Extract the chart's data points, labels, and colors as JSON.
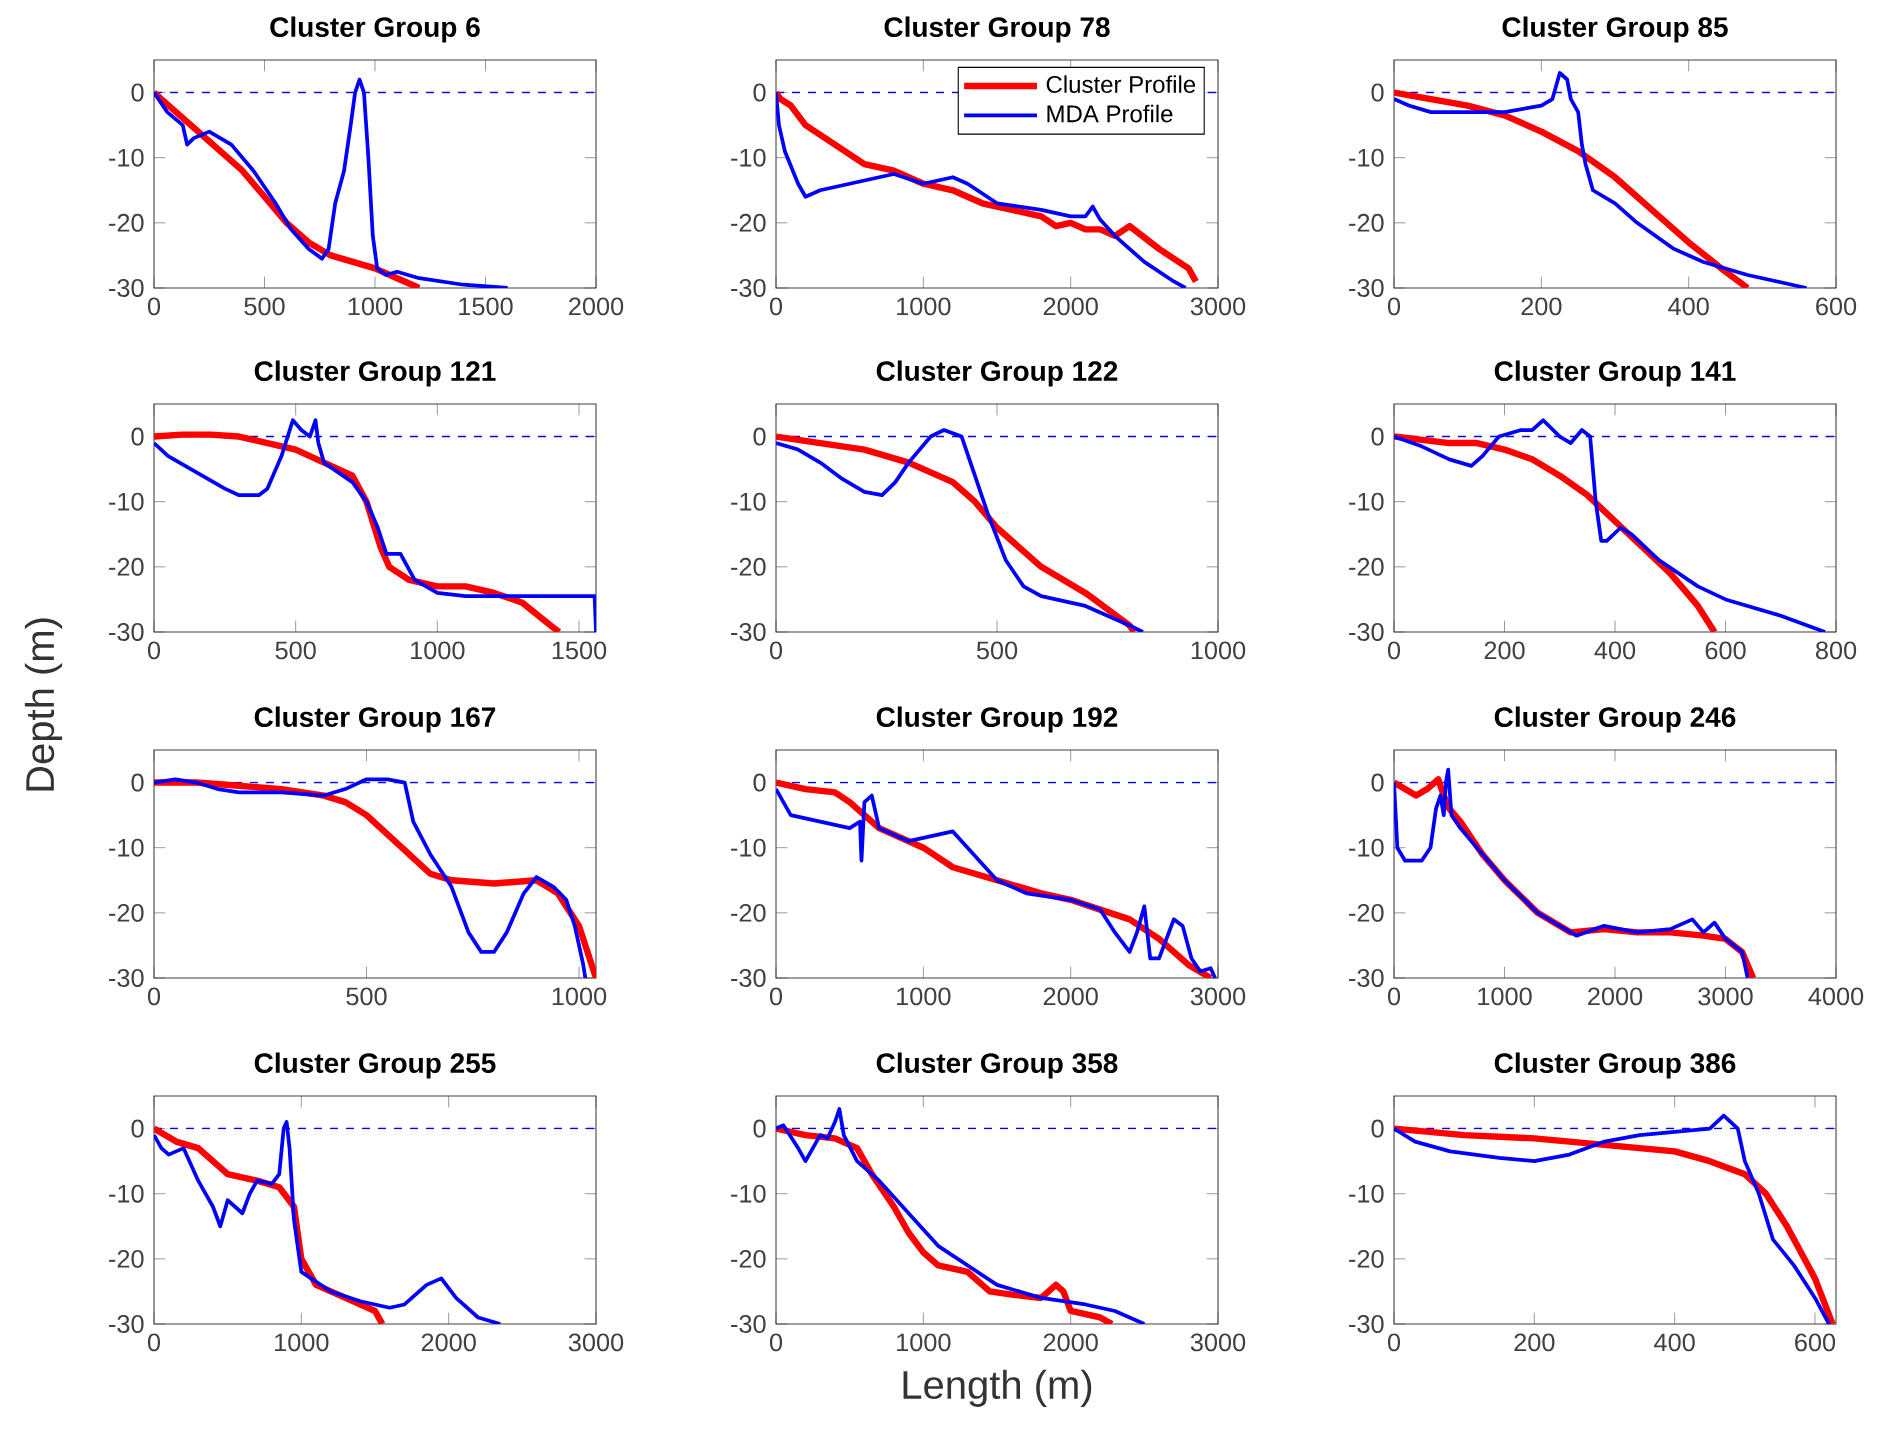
{
  "chart_data": [
    {
      "type": "line",
      "title": "Cluster Group 6",
      "xlim": [
        0,
        2000
      ],
      "ylim": [
        -30,
        5
      ],
      "xticks": [
        0,
        500,
        1000,
        1500,
        2000
      ],
      "yticks": [
        -30,
        -20,
        -10,
        0
      ],
      "ref_lines": [
        {
          "axis": "y",
          "value": 0,
          "color": "#0000ff",
          "line_style": "dashed"
        }
      ],
      "series": [
        {
          "color": "#ff0000",
          "x": [
            0,
            100,
            200,
            300,
            400,
            500,
            600,
            700,
            800,
            900,
            1000,
            1100,
            1200
          ],
          "values": [
            0,
            -3,
            -6,
            -9,
            -12,
            -16,
            -20,
            -23,
            -25,
            -26,
            -27,
            -28.5,
            -30
          ]
        },
        {
          "color": "#0000ff",
          "x": [
            0,
            60,
            130,
            150,
            180,
            250,
            350,
            450,
            550,
            620,
            700,
            760,
            790,
            820,
            860,
            890,
            910,
            930,
            950,
            970,
            990,
            1010,
            1050,
            1100,
            1200,
            1400,
            1600
          ],
          "values": [
            0,
            -3,
            -5,
            -8,
            -7,
            -6,
            -8,
            -12,
            -17,
            -21,
            -24,
            -25.5,
            -24,
            -17,
            -12,
            -5,
            0,
            2,
            0,
            -10,
            -22,
            -27,
            -28,
            -27.5,
            -28.5,
            -29.5,
            -30
          ]
        }
      ]
    },
    {
      "type": "line",
      "title": "Cluster Group 78",
      "xlim": [
        0,
        3000
      ],
      "ylim": [
        -30,
        5
      ],
      "xticks": [
        0,
        1000,
        2000,
        3000
      ],
      "yticks": [
        -30,
        -20,
        -10,
        0
      ],
      "legend": "top right",
      "ref_lines": [
        {
          "axis": "y",
          "value": 0,
          "color": "#0000ff",
          "line_style": "dashed"
        }
      ],
      "series": [
        {
          "name": "Cluster Profile",
          "color": "#ff0000",
          "x": [
            0,
            30,
            100,
            200,
            400,
            600,
            800,
            1000,
            1200,
            1400,
            1600,
            1800,
            1900,
            2000,
            2100,
            2200,
            2300,
            2400,
            2600,
            2800,
            2850
          ],
          "values": [
            0,
            -1,
            -2,
            -5,
            -8,
            -11,
            -12,
            -14,
            -15,
            -17,
            -18,
            -19,
            -20.5,
            -20,
            -21,
            -21,
            -22,
            -20.5,
            -24,
            -27,
            -29
          ]
        },
        {
          "name": "MDA Profile",
          "color": "#0000ff",
          "x": [
            0,
            20,
            60,
            150,
            200,
            300,
            500,
            700,
            800,
            1000,
            1200,
            1300,
            1500,
            1800,
            2000,
            2100,
            2150,
            2200,
            2300,
            2500,
            2700,
            2780
          ],
          "values": [
            0,
            -5,
            -9,
            -14,
            -16,
            -15,
            -14,
            -13,
            -12.5,
            -14,
            -13,
            -14,
            -17,
            -18,
            -19,
            -19,
            -17.5,
            -19.5,
            -22,
            -26,
            -29,
            -30
          ]
        }
      ]
    },
    {
      "type": "line",
      "title": "Cluster Group 85",
      "xlim": [
        0,
        600
      ],
      "ylim": [
        -30,
        5
      ],
      "xticks": [
        0,
        200,
        400,
        600
      ],
      "yticks": [
        -30,
        -20,
        -10,
        0
      ],
      "ref_lines": [
        {
          "axis": "y",
          "value": 0,
          "color": "#0000ff",
          "line_style": "dashed"
        }
      ],
      "series": [
        {
          "color": "#ff0000",
          "x": [
            0,
            50,
            100,
            150,
            200,
            250,
            300,
            350,
            400,
            450,
            480
          ],
          "values": [
            0,
            -1,
            -2,
            -3.5,
            -6,
            -9,
            -13,
            -18,
            -23,
            -27.5,
            -30
          ]
        },
        {
          "color": "#0000ff",
          "x": [
            0,
            20,
            50,
            100,
            150,
            200,
            215,
            225,
            235,
            240,
            250,
            255,
            260,
            270,
            300,
            330,
            380,
            420,
            480,
            540,
            560
          ],
          "values": [
            -1,
            -2,
            -3,
            -3,
            -3,
            -2,
            -1,
            3,
            2,
            -1,
            -3,
            -8,
            -11,
            -15,
            -17,
            -20,
            -24,
            -26,
            -28,
            -29.5,
            -30
          ]
        }
      ]
    },
    {
      "type": "line",
      "title": "Cluster Group 121",
      "ylabel": "Depth (m)",
      "xlim": [
        0,
        1560
      ],
      "ylim": [
        -30,
        5
      ],
      "xticks": [
        0,
        500,
        1000,
        1500
      ],
      "yticks": [
        -30,
        -20,
        -10,
        0
      ],
      "ref_lines": [
        {
          "axis": "y",
          "value": 0,
          "color": "#0000ff",
          "line_style": "dashed"
        }
      ],
      "series": [
        {
          "color": "#ff0000",
          "x": [
            0,
            100,
            200,
            300,
            400,
            500,
            600,
            700,
            750,
            800,
            830,
            900,
            1000,
            1100,
            1200,
            1300,
            1400,
            1430
          ],
          "values": [
            0,
            0.3,
            0.3,
            0,
            -1,
            -2,
            -4,
            -6,
            -10,
            -17,
            -20,
            -22,
            -23,
            -23,
            -24,
            -25.5,
            -29,
            -30
          ]
        },
        {
          "color": "#0000ff",
          "x": [
            0,
            50,
            150,
            250,
            300,
            370,
            400,
            450,
            490,
            520,
            550,
            570,
            580,
            600,
            700,
            750,
            790,
            820,
            870,
            920,
            1000,
            1100,
            1300,
            1555,
            1560
          ],
          "values": [
            -1,
            -3,
            -5.5,
            -8,
            -9,
            -9,
            -8,
            -3,
            2.5,
            1,
            0,
            2.5,
            -1,
            -4,
            -7,
            -10,
            -14,
            -18,
            -18,
            -22,
            -24,
            -24.5,
            -24.5,
            -24.5,
            -30
          ]
        }
      ]
    },
    {
      "type": "line",
      "title": "Cluster Group 122",
      "xlim": [
        0,
        1000
      ],
      "ylim": [
        -30,
        5
      ],
      "xticks": [
        0,
        500,
        1000
      ],
      "yticks": [
        -30,
        -20,
        -10,
        0
      ],
      "ref_lines": [
        {
          "axis": "y",
          "value": 0,
          "color": "#0000ff",
          "line_style": "dashed"
        }
      ],
      "series": [
        {
          "color": "#ff0000",
          "x": [
            0,
            100,
            200,
            300,
            400,
            450,
            500,
            550,
            600,
            700,
            800,
            810
          ],
          "values": [
            0,
            -1,
            -2,
            -4,
            -7,
            -10,
            -14,
            -17,
            -20,
            -24,
            -29,
            -30
          ]
        },
        {
          "color": "#0000ff",
          "x": [
            0,
            50,
            100,
            150,
            200,
            240,
            270,
            300,
            350,
            380,
            420,
            450,
            480,
            520,
            560,
            600,
            700,
            800,
            830
          ],
          "values": [
            -1,
            -2,
            -4,
            -6.5,
            -8.5,
            -9,
            -7,
            -4,
            0,
            1,
            0,
            -6,
            -12,
            -19,
            -23,
            -24.5,
            -26,
            -29,
            -30
          ]
        }
      ]
    },
    {
      "type": "line",
      "title": "Cluster Group 141",
      "xlim": [
        0,
        800
      ],
      "ylim": [
        -30,
        5
      ],
      "xticks": [
        0,
        200,
        400,
        600,
        800
      ],
      "yticks": [
        -30,
        -20,
        -10,
        0
      ],
      "ref_lines": [
        {
          "axis": "y",
          "value": 0,
          "color": "#0000ff",
          "line_style": "dashed"
        }
      ],
      "series": [
        {
          "color": "#ff0000",
          "x": [
            0,
            100,
            150,
            200,
            250,
            300,
            350,
            400,
            450,
            500,
            550,
            580
          ],
          "values": [
            0,
            -1,
            -1,
            -2,
            -3.5,
            -6,
            -9,
            -13,
            -17,
            -21,
            -26,
            -30
          ]
        },
        {
          "color": "#0000ff",
          "x": [
            0,
            50,
            100,
            140,
            160,
            190,
            230,
            250,
            270,
            300,
            320,
            340,
            355,
            365,
            375,
            385,
            410,
            430,
            480,
            550,
            600,
            700,
            780
          ],
          "values": [
            0,
            -1.5,
            -3.5,
            -4.5,
            -3,
            0,
            1,
            1,
            2.5,
            0,
            -1,
            1,
            0,
            -10,
            -16,
            -16,
            -14,
            -15,
            -19,
            -23,
            -25,
            -27.5,
            -30
          ]
        }
      ]
    },
    {
      "type": "line",
      "title": "Cluster Group 167",
      "xlim": [
        0,
        1040
      ],
      "ylim": [
        -30,
        5
      ],
      "xticks": [
        0,
        500,
        1000
      ],
      "yticks": [
        -30,
        -20,
        -10,
        0
      ],
      "ref_lines": [
        {
          "axis": "y",
          "value": 0,
          "color": "#0000ff",
          "line_style": "dashed"
        }
      ],
      "series": [
        {
          "color": "#ff0000",
          "x": [
            0,
            100,
            200,
            300,
            400,
            450,
            500,
            550,
            600,
            650,
            700,
            800,
            900,
            950,
            1000,
            1040
          ],
          "values": [
            0,
            0,
            -0.5,
            -1,
            -2,
            -3,
            -5,
            -8,
            -11,
            -14,
            -15,
            -15.5,
            -15,
            -17,
            -22,
            -30
          ]
        },
        {
          "color": "#0000ff",
          "x": [
            0,
            50,
            100,
            150,
            200,
            300,
            400,
            450,
            500,
            550,
            590,
            610,
            650,
            700,
            740,
            770,
            800,
            830,
            870,
            900,
            940,
            970,
            990,
            1010,
            1015
          ],
          "values": [
            0,
            0.5,
            0,
            -1,
            -1.5,
            -1.5,
            -2,
            -1,
            0.5,
            0.5,
            0,
            -6,
            -11,
            -16,
            -23,
            -26,
            -26,
            -23,
            -17,
            -14.5,
            -16,
            -18,
            -22,
            -28,
            -30
          ]
        }
      ]
    },
    {
      "type": "line",
      "title": "Cluster Group 192",
      "xlim": [
        0,
        3000
      ],
      "ylim": [
        -30,
        5
      ],
      "xticks": [
        0,
        1000,
        2000,
        3000
      ],
      "yticks": [
        -30,
        -20,
        -10,
        0
      ],
      "ref_lines": [
        {
          "axis": "y",
          "value": 0,
          "color": "#0000ff",
          "line_style": "dashed"
        }
      ],
      "series": [
        {
          "color": "#ff0000",
          "x": [
            0,
            200,
            400,
            500,
            700,
            1000,
            1200,
            1500,
            1800,
            2000,
            2200,
            2400,
            2600,
            2800,
            2950
          ],
          "values": [
            0,
            -1,
            -1.5,
            -3,
            -7,
            -10,
            -13,
            -15,
            -17,
            -18,
            -19.5,
            -21,
            -24,
            -28,
            -30
          ]
        },
        {
          "color": "#0000ff",
          "x": [
            0,
            100,
            300,
            500,
            570,
            580,
            600,
            650,
            700,
            900,
            1100,
            1200,
            1300,
            1500,
            1700,
            2000,
            2200,
            2300,
            2400,
            2450,
            2500,
            2540,
            2600,
            2700,
            2760,
            2820,
            2880,
            2950,
            2980
          ],
          "values": [
            -1,
            -5,
            -6,
            -7,
            -6,
            -12,
            -3,
            -2,
            -7,
            -9,
            -8,
            -7.5,
            -10,
            -15,
            -17,
            -18,
            -19.5,
            -23,
            -26,
            -23,
            -19,
            -27,
            -27,
            -21,
            -22,
            -27,
            -29,
            -28.5,
            -30
          ]
        }
      ]
    },
    {
      "type": "line",
      "title": "Cluster Group 246",
      "xlim": [
        0,
        4000
      ],
      "ylim": [
        -30,
        5
      ],
      "xticks": [
        0,
        1000,
        2000,
        3000,
        4000
      ],
      "yticks": [
        -30,
        -20,
        -10,
        0
      ],
      "ref_lines": [
        {
          "axis": "y",
          "value": 0,
          "color": "#0000ff",
          "line_style": "dashed"
        }
      ],
      "series": [
        {
          "color": "#ff0000",
          "x": [
            0,
            100,
            200,
            300,
            400,
            450,
            500,
            600,
            800,
            1000,
            1300,
            1600,
            1900,
            2200,
            2500,
            2800,
            3000,
            3150,
            3250
          ],
          "values": [
            0,
            -1,
            -2,
            -1,
            0.5,
            -2,
            -4,
            -6,
            -11,
            -15,
            -20,
            -23,
            -22.5,
            -23,
            -23,
            -23.5,
            -24,
            -26,
            -30
          ]
        },
        {
          "color": "#0000ff",
          "x": [
            0,
            30,
            100,
            250,
            330,
            380,
            420,
            450,
            470,
            490,
            520,
            600,
            800,
            1000,
            1300,
            1650,
            1900,
            2200,
            2500,
            2700,
            2800,
            2900,
            3000,
            3150,
            3200
          ],
          "values": [
            0,
            -10,
            -12,
            -12,
            -10,
            -4,
            -2,
            -5,
            0,
            2,
            -5,
            -7,
            -11,
            -15,
            -20,
            -23.5,
            -22,
            -23,
            -22.5,
            -21,
            -23,
            -21.5,
            -24,
            -26,
            -30
          ]
        }
      ]
    },
    {
      "type": "line",
      "title": "Cluster Group 255",
      "xlim": [
        0,
        3000
      ],
      "ylim": [
        -30,
        5
      ],
      "xticks": [
        0,
        1000,
        2000,
        3000
      ],
      "yticks": [
        -30,
        -20,
        -10,
        0
      ],
      "ref_lines": [
        {
          "axis": "y",
          "value": 0,
          "color": "#0000ff",
          "line_style": "dashed"
        }
      ],
      "series": [
        {
          "color": "#ff0000",
          "x": [
            0,
            150,
            300,
            500,
            700,
            850,
            950,
            1000,
            1100,
            1300,
            1500,
            1550
          ],
          "values": [
            0,
            -2,
            -3,
            -7,
            -8,
            -9,
            -12,
            -20,
            -24,
            -26,
            -28,
            -30
          ]
        },
        {
          "color": "#0000ff",
          "x": [
            0,
            50,
            100,
            200,
            300,
            400,
            450,
            500,
            600,
            650,
            700,
            800,
            850,
            880,
            900,
            920,
            950,
            1000,
            1200,
            1400,
            1600,
            1700,
            1850,
            1950,
            2050,
            2200,
            2350
          ],
          "values": [
            -1,
            -3,
            -4,
            -3,
            -8,
            -12,
            -15,
            -11,
            -13,
            -10,
            -8,
            -8.5,
            -7,
            0,
            1,
            -3,
            -14,
            -22,
            -25,
            -26.5,
            -27.5,
            -27,
            -24,
            -23,
            -26,
            -29,
            -30
          ]
        }
      ]
    },
    {
      "type": "line",
      "title": "Cluster Group 358",
      "xlabel": "Length (m)",
      "xlim": [
        0,
        3000
      ],
      "ylim": [
        -30,
        5
      ],
      "xticks": [
        0,
        1000,
        2000,
        3000
      ],
      "yticks": [
        -30,
        -20,
        -10,
        0
      ],
      "ref_lines": [
        {
          "axis": "y",
          "value": 0,
          "color": "#0000ff",
          "line_style": "dashed"
        }
      ],
      "series": [
        {
          "color": "#ff0000",
          "x": [
            0,
            200,
            400,
            550,
            650,
            800,
            900,
            1000,
            1100,
            1300,
            1450,
            1600,
            1800,
            1900,
            1950,
            2000,
            2200,
            2280
          ],
          "values": [
            0,
            -1,
            -1.5,
            -3,
            -7,
            -12,
            -16,
            -19,
            -21,
            -22,
            -25,
            -25.5,
            -26,
            -24,
            -25,
            -28,
            -29,
            -30
          ]
        },
        {
          "color": "#0000ff",
          "x": [
            0,
            50,
            150,
            200,
            300,
            350,
            400,
            430,
            460,
            550,
            700,
            900,
            1100,
            1300,
            1500,
            1800,
            2100,
            2300,
            2500
          ],
          "values": [
            0,
            0.5,
            -3,
            -5,
            -1,
            -1.5,
            1,
            3,
            -1,
            -5,
            -8,
            -13,
            -18,
            -21,
            -24,
            -26,
            -27,
            -28,
            -30
          ]
        }
      ]
    },
    {
      "type": "line",
      "title": "Cluster Group 386",
      "xlim": [
        0,
        630
      ],
      "ylim": [
        -30,
        5
      ],
      "xticks": [
        0,
        200,
        400,
        600
      ],
      "yticks": [
        -30,
        -20,
        -10,
        0
      ],
      "ref_lines": [
        {
          "axis": "y",
          "value": 0,
          "color": "#0000ff",
          "line_style": "dashed"
        }
      ],
      "series": [
        {
          "color": "#ff0000",
          "x": [
            0,
            100,
            200,
            300,
            400,
            450,
            500,
            530,
            560,
            600,
            625
          ],
          "values": [
            0,
            -1,
            -1.5,
            -2.5,
            -3.5,
            -5,
            -7,
            -10,
            -15,
            -23,
            -30
          ]
        },
        {
          "color": "#0000ff",
          "x": [
            0,
            30,
            80,
            150,
            200,
            250,
            300,
            350,
            400,
            450,
            470,
            490,
            500,
            520,
            540,
            570,
            600,
            620
          ],
          "values": [
            0,
            -2,
            -3.5,
            -4.5,
            -5,
            -4,
            -2,
            -1,
            -0.5,
            0,
            2,
            0,
            -5,
            -10,
            -17,
            -21,
            -26,
            -30
          ]
        }
      ]
    }
  ]
}
